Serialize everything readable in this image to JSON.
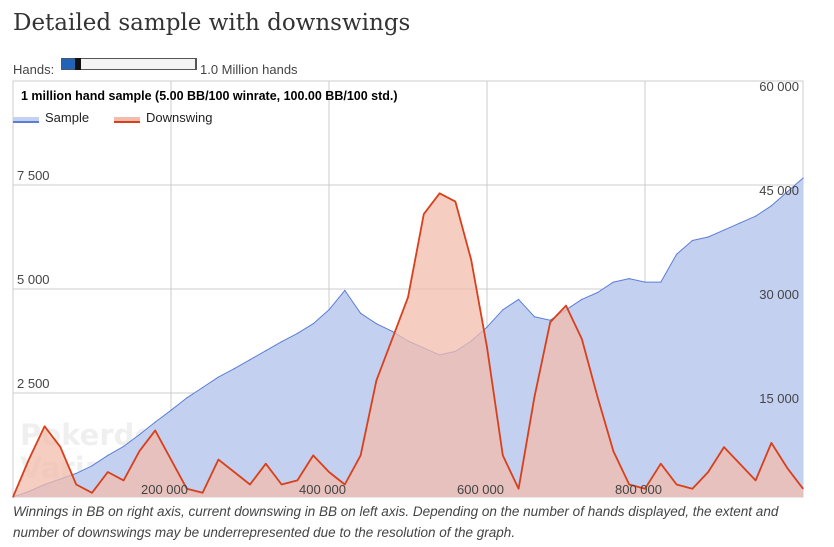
{
  "page": {
    "title": "Detailed sample with downswings",
    "hands_label": "Hands:",
    "hands_value": "1.0 Million hands",
    "hands_slider_fraction": 0.1,
    "caption": "Winnings in BB on right axis, current downswing in BB on left axis. Depending on the number of hands displayed, the extent and number of downswings may be underrepresented due to the resolution of the graph.",
    "watermark": [
      "Pokerdope.com",
      "Variance simulator"
    ]
  },
  "chart_data": {
    "type": "area",
    "title": "1 million hand sample (5.00 BB/100 winrate, 100.00 BB/100 std.)",
    "legend": {
      "position": "top-left"
    },
    "grid": true,
    "x_axis": {
      "range": [
        0,
        1000000
      ],
      "ticks": [
        200000,
        400000,
        600000,
        800000
      ],
      "tick_labels": [
        "200 000",
        "400 000",
        "600 000",
        "800 000"
      ]
    },
    "y_left": {
      "range": [
        0,
        10000
      ],
      "ticks": [
        2500,
        5000,
        7500
      ],
      "tick_labels": [
        "2 500",
        "5 000",
        "7 500"
      ]
    },
    "y_right": {
      "range": [
        0,
        60000
      ],
      "ticks": [
        15000,
        30000,
        45000,
        60000
      ],
      "tick_labels": [
        "15 000",
        "30 000",
        "45 000",
        "60 000"
      ]
    },
    "series": [
      {
        "name": "Sample",
        "axis": "right",
        "color": "#5b7fd6",
        "fill": "#c3d0f0",
        "x": [
          0,
          20000,
          40000,
          60000,
          80000,
          100000,
          120000,
          140000,
          160000,
          180000,
          200000,
          220000,
          240000,
          260000,
          280000,
          300000,
          320000,
          340000,
          360000,
          380000,
          400000,
          420000,
          440000,
          460000,
          480000,
          500000,
          520000,
          540000,
          560000,
          580000,
          600000,
          620000,
          640000,
          660000,
          680000,
          700000,
          720000,
          740000,
          760000,
          780000,
          800000,
          820000,
          840000,
          860000,
          880000,
          900000,
          920000,
          940000,
          960000,
          980000,
          1000000
        ],
        "y": [
          0,
          800,
          1800,
          2600,
          3400,
          4500,
          6000,
          7300,
          9000,
          10800,
          12500,
          14300,
          15800,
          17300,
          18500,
          19800,
          21100,
          22400,
          23600,
          25000,
          27000,
          29800,
          26500,
          25000,
          23900,
          22500,
          21500,
          20500,
          21000,
          22500,
          24500,
          27000,
          28500,
          26000,
          25500,
          27000,
          28500,
          29500,
          31000,
          31500,
          31000,
          31000,
          35000,
          37000,
          37500,
          38500,
          39500,
          40500,
          42000,
          44000,
          46000
        ]
      },
      {
        "name": "Downswing",
        "axis": "left",
        "color": "#d8401c",
        "fill": "#f2bcac",
        "x": [
          0,
          20000,
          40000,
          60000,
          80000,
          100000,
          120000,
          140000,
          160000,
          180000,
          200000,
          220000,
          240000,
          260000,
          280000,
          300000,
          320000,
          340000,
          360000,
          380000,
          400000,
          420000,
          440000,
          460000,
          480000,
          500000,
          520000,
          540000,
          560000,
          580000,
          600000,
          620000,
          640000,
          660000,
          680000,
          700000,
          720000,
          740000,
          760000,
          780000,
          800000,
          820000,
          840000,
          860000,
          880000,
          900000,
          920000,
          940000,
          960000,
          980000,
          1000000
        ],
        "y": [
          0,
          900,
          1700,
          1200,
          300,
          100,
          600,
          400,
          1100,
          1600,
          900,
          200,
          100,
          900,
          600,
          300,
          800,
          300,
          400,
          1000,
          600,
          300,
          1000,
          2800,
          3800,
          4800,
          6800,
          7300,
          7100,
          5700,
          3600,
          1000,
          200,
          2400,
          4200,
          4600,
          3800,
          2400,
          1100,
          300,
          200,
          800,
          300,
          200,
          600,
          1200,
          800,
          400,
          1300,
          700,
          200
        ]
      }
    ]
  }
}
